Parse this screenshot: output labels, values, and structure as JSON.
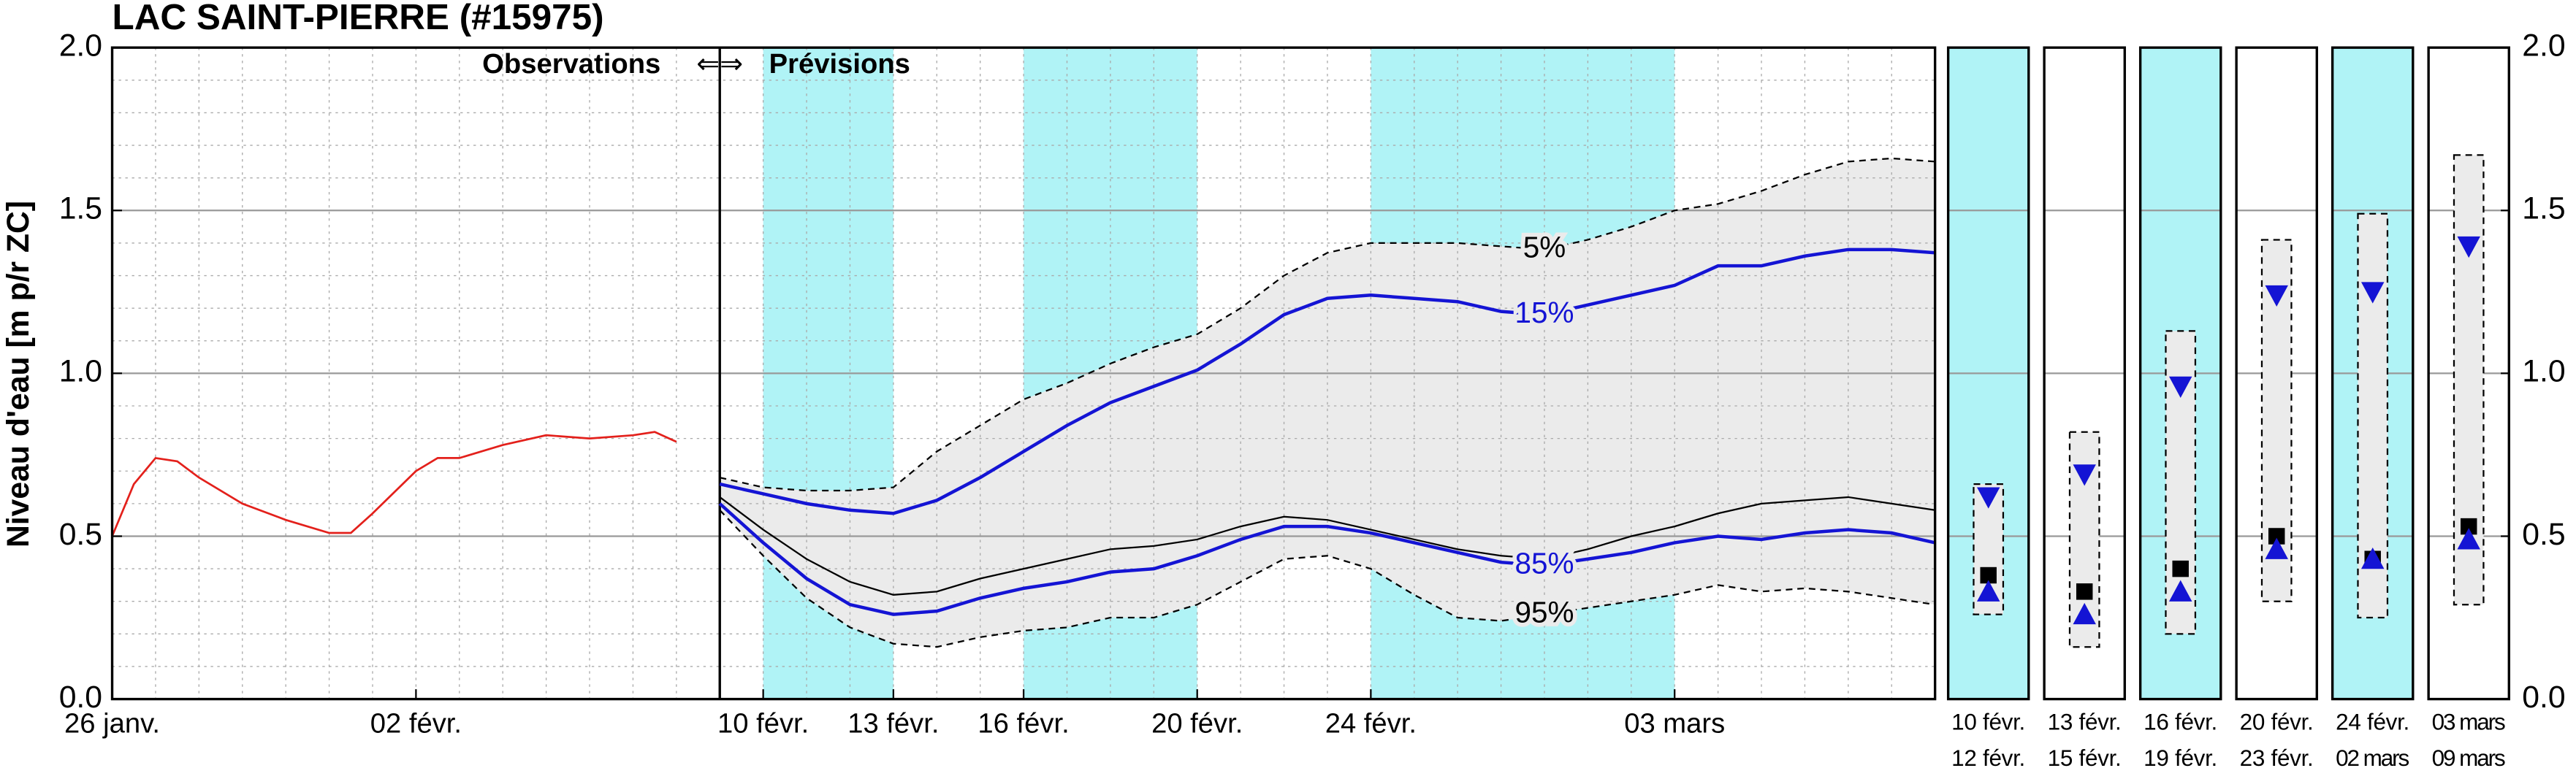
{
  "chart_data": [
    {
      "type": "line",
      "title": "LAC SAINT-PIERRE (#15975)",
      "ylabel": "Niveau d'eau [m p/r ZC]",
      "annotation": {
        "observations": "Observations",
        "arrow": "⇐⇒",
        "forecasts": "Prévisions"
      },
      "xlim": [
        0,
        42
      ],
      "xticks": [
        {
          "value": 0,
          "label": "26 janv."
        },
        {
          "value": 7,
          "label": "02 févr."
        },
        {
          "value": 15,
          "label": "10 févr."
        },
        {
          "value": 18,
          "label": "13 févr."
        },
        {
          "value": 21,
          "label": "16 févr."
        },
        {
          "value": 25,
          "label": "20 févr."
        },
        {
          "value": 29,
          "label": "24 févr."
        },
        {
          "value": 36,
          "label": "03 mars"
        }
      ],
      "ylim": [
        0,
        2
      ],
      "yticks": [
        {
          "value": 0,
          "label": "0.0"
        },
        0.5,
        {
          "value": 1,
          "label": "1.0"
        },
        1.5,
        {
          "value": 2,
          "label": "2.0"
        }
      ],
      "grid": true,
      "shaded": [
        [
          15,
          18
        ],
        [
          21,
          25
        ],
        [
          29,
          36
        ]
      ],
      "shade_color": "#b0f3f6",
      "band_color": "#ebebeb",
      "series": [
        {
          "color": "#e3201b",
          "x": [
            0,
            0.5,
            1,
            1.5,
            2,
            3,
            4,
            5,
            5.5,
            6,
            7,
            7.5,
            8,
            9,
            10,
            11,
            12,
            12.5,
            13
          ],
          "values": [
            0.5,
            0.66,
            0.74,
            0.73,
            0.68,
            0.6,
            0.55,
            0.51,
            0.51,
            0.57,
            0.7,
            0.74,
            0.74,
            0.78,
            0.81,
            0.8,
            0.81,
            0.82,
            0.79
          ]
        },
        {
          "name": "5%",
          "color": "#000000",
          "dashed": true,
          "x": [
            14,
            15,
            16,
            17,
            18,
            19,
            20,
            21,
            22,
            23,
            24,
            25,
            26,
            27,
            28,
            29,
            30,
            31,
            32,
            33,
            34,
            35,
            36,
            37,
            38,
            39,
            40,
            41,
            42
          ],
          "values": [
            0.68,
            0.65,
            0.64,
            0.64,
            0.65,
            0.76,
            0.84,
            0.92,
            0.97,
            1.03,
            1.08,
            1.12,
            1.2,
            1.3,
            1.37,
            1.4,
            1.4,
            1.4,
            1.39,
            1.38,
            1.41,
            1.45,
            1.5,
            1.52,
            1.56,
            1.61,
            1.65,
            1.66,
            1.65
          ]
        },
        {
          "name": "15%",
          "color": "#1414d4",
          "x": [
            14,
            15,
            16,
            17,
            18,
            19,
            20,
            21,
            22,
            23,
            24,
            25,
            26,
            27,
            28,
            29,
            30,
            31,
            32,
            33,
            34,
            35,
            36,
            37,
            38,
            39,
            40,
            41,
            42
          ],
          "values": [
            0.66,
            0.63,
            0.6,
            0.58,
            0.57,
            0.61,
            0.68,
            0.76,
            0.84,
            0.91,
            0.96,
            1.01,
            1.09,
            1.18,
            1.23,
            1.24,
            1.23,
            1.22,
            1.19,
            1.18,
            1.21,
            1.24,
            1.27,
            1.33,
            1.33,
            1.36,
            1.38,
            1.38,
            1.37
          ]
        },
        {
          "color": "#000000",
          "thin": true,
          "x": [
            14,
            15,
            16,
            17,
            18,
            19,
            20,
            21,
            22,
            23,
            24,
            25,
            26,
            27,
            28,
            29,
            30,
            31,
            32,
            33,
            34,
            35,
            36,
            37,
            38,
            39,
            40,
            41,
            42
          ],
          "values": [
            0.62,
            0.52,
            0.43,
            0.36,
            0.32,
            0.33,
            0.37,
            0.4,
            0.43,
            0.46,
            0.47,
            0.49,
            0.53,
            0.56,
            0.55,
            0.52,
            0.49,
            0.46,
            0.44,
            0.43,
            0.46,
            0.5,
            0.53,
            0.57,
            0.6,
            0.61,
            0.62,
            0.6,
            0.58
          ]
        },
        {
          "name": "85%",
          "color": "#1414d4",
          "x": [
            14,
            15,
            16,
            17,
            18,
            19,
            20,
            21,
            22,
            23,
            24,
            25,
            26,
            27,
            28,
            29,
            30,
            31,
            32,
            33,
            34,
            35,
            36,
            37,
            38,
            39,
            40,
            41,
            42
          ],
          "values": [
            0.6,
            0.48,
            0.37,
            0.29,
            0.26,
            0.27,
            0.31,
            0.34,
            0.36,
            0.39,
            0.4,
            0.44,
            0.49,
            0.53,
            0.53,
            0.51,
            0.48,
            0.45,
            0.42,
            0.41,
            0.43,
            0.45,
            0.48,
            0.5,
            0.49,
            0.51,
            0.52,
            0.51,
            0.48
          ]
        },
        {
          "name": "95%",
          "color": "#000000",
          "dashed": true,
          "x": [
            14,
            15,
            16,
            17,
            18,
            19,
            20,
            21,
            22,
            23,
            24,
            25,
            26,
            27,
            28,
            29,
            30,
            31,
            32,
            33,
            34,
            35,
            36,
            37,
            38,
            39,
            40,
            41,
            42
          ],
          "values": [
            0.58,
            0.44,
            0.31,
            0.22,
            0.17,
            0.16,
            0.19,
            0.21,
            0.22,
            0.25,
            0.25,
            0.29,
            0.36,
            0.43,
            0.44,
            0.4,
            0.32,
            0.25,
            0.24,
            0.26,
            0.28,
            0.3,
            0.32,
            0.35,
            0.33,
            0.34,
            0.33,
            0.31,
            0.29
          ]
        }
      ]
    },
    {
      "type": "range",
      "ylim": [
        0,
        2
      ],
      "yticks": [
        {
          "value": 0,
          "label": "0.0"
        },
        0.5,
        {
          "value": 1,
          "label": "1.0"
        },
        1.5,
        {
          "value": 2,
          "label": "2.0"
        }
      ],
      "periods": [
        {
          "start": "10 févr.",
          "end": "12 févr."
        },
        {
          "start": "13 févr.",
          "end": "15 févr."
        },
        {
          "start": "16 févr.",
          "end": "19 févr."
        },
        {
          "start": "20 févr.",
          "end": "23 févr."
        },
        {
          "start": "24 févr.",
          "end": "02 mars"
        },
        {
          "start": "03 mars",
          "end": "09 mars"
        }
      ],
      "shaded": [
        true,
        false,
        true,
        false,
        true,
        false
      ],
      "shade_color": "#b0f3f6",
      "box_color": "#ebebeb",
      "marker_color": "#1414d4",
      "high": [
        0.66,
        0.82,
        1.13,
        1.41,
        1.49,
        1.67
      ],
      "low": [
        0.26,
        0.16,
        0.2,
        0.3,
        0.25,
        0.29
      ],
      "down_marker": [
        0.62,
        0.69,
        0.96,
        1.24,
        1.25,
        1.39
      ],
      "square_marker": [
        0.38,
        0.33,
        0.4,
        0.5,
        0.43,
        0.53
      ],
      "up_marker": [
        0.33,
        0.26,
        0.33,
        0.46,
        0.43,
        0.49
      ]
    }
  ]
}
